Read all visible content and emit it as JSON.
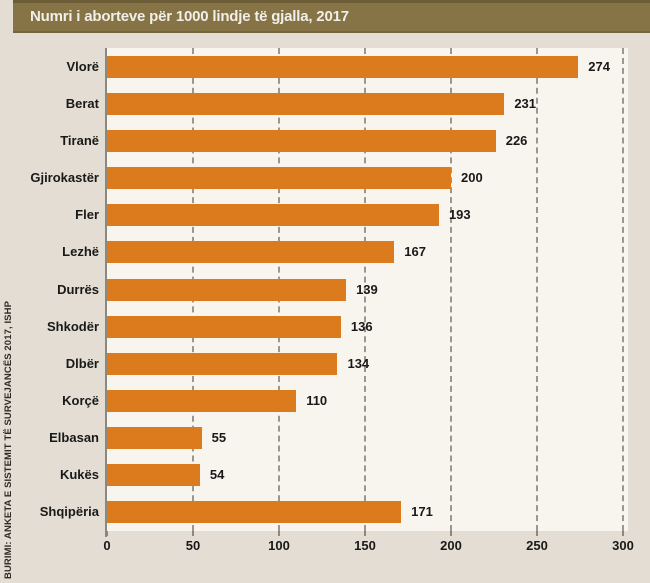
{
  "header": {
    "title": "Numri i aborteve për 1000 lindje të gjalla, 2017"
  },
  "source_note": "BURIMI: ANKETA E SISTEMIT TË SURVEJANCËS 2017, ISHP",
  "chart_data": {
    "type": "bar",
    "orientation": "horizontal",
    "title": "Numri i aborteve për 1000 lindje të gjalla, 2017",
    "categories": [
      "Vlorë",
      "Berat",
      "Tiranë",
      "Gjirokastër",
      "Fler",
      "Lezhë",
      "Durrës",
      "Shkodër",
      "Dlbër",
      "Korçë",
      "Elbasan",
      "Kukës",
      "Shqipëria"
    ],
    "values": [
      274,
      231,
      226,
      200,
      193,
      167,
      139,
      136,
      134,
      110,
      55,
      54,
      171
    ],
    "xlabel": "",
    "ylabel": "",
    "xlim": [
      0,
      300
    ],
    "x_ticks": [
      0,
      50,
      100,
      150,
      200,
      250,
      300
    ],
    "grid": "vertical-dashed",
    "legend": "none",
    "value_labels": true,
    "bar_color": "#DC7B1E",
    "plot_background": "#F8F4EE",
    "page_background": "#E3DDD3",
    "title_bar_color": "#867446",
    "gridline_color": "#9B978D",
    "label_color": "#191919"
  }
}
